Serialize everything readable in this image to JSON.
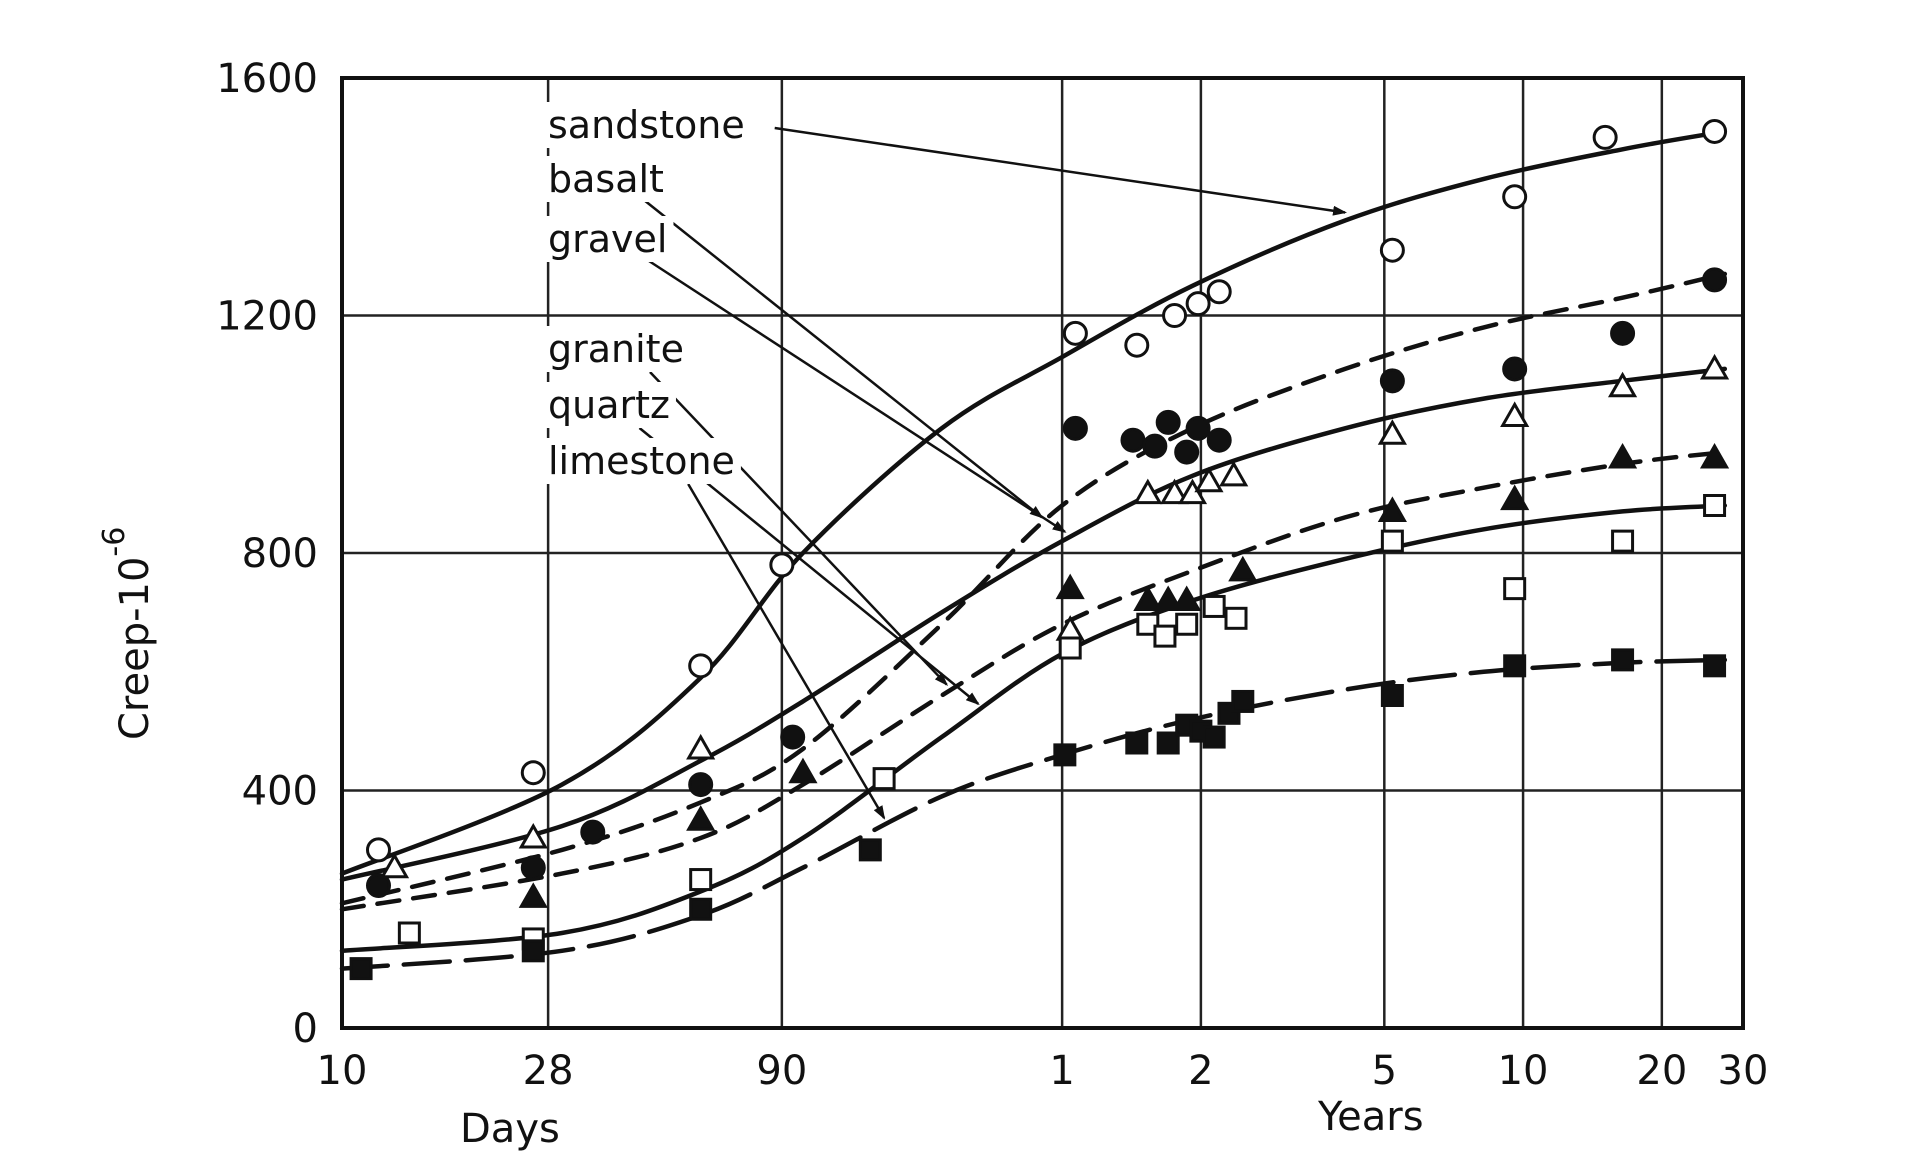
{
  "chart_data": {
    "type": "line",
    "ylabel": "Creep-10",
    "ylabel_exponent": "-6",
    "xlabel_days": "Days",
    "xlabel_years": "Years",
    "x_scale": "log",
    "x_unit": "days",
    "xlim": [
      10,
      10950
    ],
    "ylim": [
      0,
      1600
    ],
    "y_ticks": [
      0,
      400,
      800,
      1200,
      1600
    ],
    "x_ticks": [
      {
        "value": 10,
        "label": "10"
      },
      {
        "value": 28,
        "label": "28"
      },
      {
        "value": 90,
        "label": "90"
      },
      {
        "value": 365,
        "label": "1"
      },
      {
        "value": 730,
        "label": "2"
      },
      {
        "value": 1825,
        "label": "5"
      },
      {
        "value": 3650,
        "label": "10"
      },
      {
        "value": 7300,
        "label": "20"
      },
      {
        "value": 10950,
        "label": "30"
      }
    ],
    "legend_order": [
      "sandstone",
      "basalt",
      "gravel",
      "granite",
      "quartz",
      "limestone"
    ],
    "series": [
      {
        "name": "sandstone",
        "marker": "circle-open",
        "line": "solid",
        "points": [
          [
            12,
            300
          ],
          [
            26,
            430
          ],
          [
            60,
            610
          ],
          [
            90,
            780
          ],
          [
            390,
            1170
          ],
          [
            530,
            1150
          ],
          [
            640,
            1200
          ],
          [
            720,
            1220
          ],
          [
            800,
            1240
          ],
          [
            1900,
            1310
          ],
          [
            3500,
            1400
          ],
          [
            5500,
            1500
          ],
          [
            9500,
            1510
          ]
        ],
        "curve": [
          [
            10,
            260
          ],
          [
            30,
            410
          ],
          [
            60,
            590
          ],
          [
            100,
            800
          ],
          [
            200,
            1010
          ],
          [
            365,
            1130
          ],
          [
            700,
            1250
          ],
          [
            1500,
            1360
          ],
          [
            3000,
            1430
          ],
          [
            6000,
            1480
          ],
          [
            10000,
            1510
          ]
        ]
      },
      {
        "name": "basalt",
        "marker": "circle-filled",
        "line": "dashed",
        "points": [
          [
            12,
            240
          ],
          [
            26,
            270
          ],
          [
            35,
            330
          ],
          [
            60,
            410
          ],
          [
            95,
            490
          ],
          [
            390,
            1010
          ],
          [
            520,
            990
          ],
          [
            580,
            980
          ],
          [
            620,
            1020
          ],
          [
            680,
            970
          ],
          [
            720,
            1010
          ],
          [
            800,
            990
          ],
          [
            1900,
            1090
          ],
          [
            3500,
            1110
          ],
          [
            6000,
            1170
          ],
          [
            9500,
            1260
          ]
        ],
        "curve": [
          [
            10,
            210
          ],
          [
            30,
            300
          ],
          [
            60,
            380
          ],
          [
            100,
            470
          ],
          [
            200,
            680
          ],
          [
            365,
            880
          ],
          [
            700,
            1010
          ],
          [
            1500,
            1110
          ],
          [
            3000,
            1180
          ],
          [
            6000,
            1230
          ],
          [
            10000,
            1270
          ]
        ]
      },
      {
        "name": "gravel",
        "marker": "triangle-open",
        "line": "solid",
        "points": [
          [
            13,
            270
          ],
          [
            26,
            320
          ],
          [
            60,
            470
          ],
          [
            380,
            670
          ],
          [
            560,
            900
          ],
          [
            640,
            900
          ],
          [
            700,
            900
          ],
          [
            760,
            920
          ],
          [
            860,
            930
          ],
          [
            1900,
            1000
          ],
          [
            3500,
            1030
          ],
          [
            6000,
            1080
          ],
          [
            9500,
            1110
          ]
        ],
        "curve": [
          [
            10,
            250
          ],
          [
            30,
            340
          ],
          [
            60,
            450
          ],
          [
            100,
            550
          ],
          [
            200,
            700
          ],
          [
            365,
            820
          ],
          [
            700,
            930
          ],
          [
            1500,
            1010
          ],
          [
            3000,
            1060
          ],
          [
            6000,
            1090
          ],
          [
            10000,
            1110
          ]
        ]
      },
      {
        "name": "granite",
        "marker": "triangle-filled",
        "line": "dashed",
        "points": [
          [
            26,
            220
          ],
          [
            60,
            350
          ],
          [
            100,
            430
          ],
          [
            380,
            740
          ],
          [
            560,
            720
          ],
          [
            620,
            720
          ],
          [
            680,
            720
          ],
          [
            900,
            770
          ],
          [
            1900,
            870
          ],
          [
            3500,
            890
          ],
          [
            6000,
            960
          ],
          [
            9500,
            960
          ]
        ],
        "curve": [
          [
            10,
            200
          ],
          [
            30,
            260
          ],
          [
            60,
            320
          ],
          [
            100,
            410
          ],
          [
            200,
            560
          ],
          [
            365,
            680
          ],
          [
            700,
            770
          ],
          [
            1500,
            860
          ],
          [
            3000,
            910
          ],
          [
            6000,
            950
          ],
          [
            10000,
            970
          ]
        ]
      },
      {
        "name": "quartz",
        "marker": "square-open",
        "line": "solid",
        "points": [
          [
            14,
            160
          ],
          [
            26,
            150
          ],
          [
            60,
            250
          ],
          [
            150,
            420
          ],
          [
            380,
            640
          ],
          [
            560,
            680
          ],
          [
            610,
            660
          ],
          [
            680,
            680
          ],
          [
            780,
            710
          ],
          [
            870,
            690
          ],
          [
            1900,
            820
          ],
          [
            3500,
            740
          ],
          [
            6000,
            820
          ],
          [
            9500,
            880
          ]
        ],
        "curve": [
          [
            10,
            130
          ],
          [
            30,
            160
          ],
          [
            60,
            230
          ],
          [
            100,
            320
          ],
          [
            200,
            490
          ],
          [
            365,
            630
          ],
          [
            700,
            720
          ],
          [
            1500,
            790
          ],
          [
            3000,
            840
          ],
          [
            6000,
            870
          ],
          [
            10000,
            880
          ]
        ]
      },
      {
        "name": "limestone",
        "marker": "square-filled",
        "line": "long-dashed",
        "points": [
          [
            11,
            100
          ],
          [
            26,
            130
          ],
          [
            60,
            200
          ],
          [
            140,
            300
          ],
          [
            370,
            460
          ],
          [
            530,
            480
          ],
          [
            620,
            480
          ],
          [
            680,
            510
          ],
          [
            730,
            500
          ],
          [
            780,
            490
          ],
          [
            840,
            530
          ],
          [
            900,
            550
          ],
          [
            1900,
            560
          ],
          [
            3500,
            610
          ],
          [
            6000,
            620
          ],
          [
            9500,
            610
          ]
        ],
        "curve": [
          [
            10,
            100
          ],
          [
            30,
            130
          ],
          [
            60,
            190
          ],
          [
            100,
            270
          ],
          [
            200,
            390
          ],
          [
            365,
            460
          ],
          [
            700,
            520
          ],
          [
            1500,
            570
          ],
          [
            3000,
            600
          ],
          [
            6000,
            615
          ],
          [
            10000,
            620
          ]
        ]
      }
    ]
  }
}
